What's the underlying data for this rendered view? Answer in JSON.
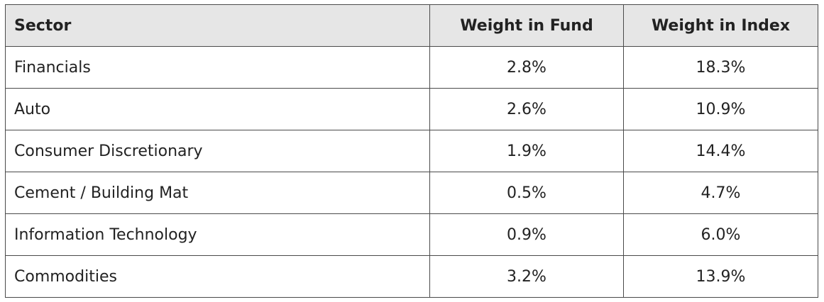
{
  "table": {
    "headers": [
      "Sector",
      "Weight in Fund",
      "Weight in Index"
    ],
    "rows": [
      [
        "Financials",
        "2.8%",
        "18.3%"
      ],
      [
        "Auto",
        "2.6%",
        "10.9%"
      ],
      [
        "Consumer Discretionary",
        "1.9%",
        "14.4%"
      ],
      [
        "Cement / Building Mat",
        "0.5%",
        "4.7%"
      ],
      [
        "Information Technology",
        "0.9%",
        "6.0%"
      ],
      [
        "Commodities",
        "3.2%",
        "13.9%"
      ]
    ]
  },
  "colors": {
    "header_background": "#e6e6e6",
    "border": "#4a4a4a",
    "text": "#222222"
  }
}
